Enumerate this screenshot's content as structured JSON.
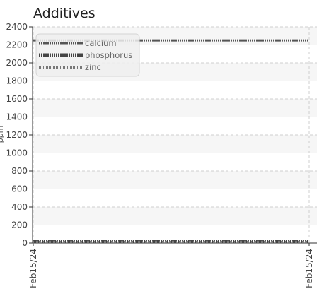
{
  "chart_data": {
    "type": "line",
    "title": "Additives",
    "xlabel": "",
    "ylabel": "ppm",
    "ylim": [
      0,
      2400
    ],
    "y_ticks": [
      0,
      200,
      400,
      600,
      800,
      1000,
      1200,
      1400,
      1600,
      1800,
      2000,
      2200,
      2400
    ],
    "x": [
      "Feb15/24",
      "Feb15/24"
    ],
    "series": [
      {
        "name": "calcium",
        "values": [
          2250,
          2250
        ],
        "color": "#555555"
      },
      {
        "name": "phosphorus",
        "values": [
          20,
          20
        ],
        "color": "#444444"
      },
      {
        "name": "zinc",
        "values": [
          10,
          10
        ],
        "color": "#777777"
      }
    ],
    "grid": true,
    "legend_position": "top-left"
  }
}
